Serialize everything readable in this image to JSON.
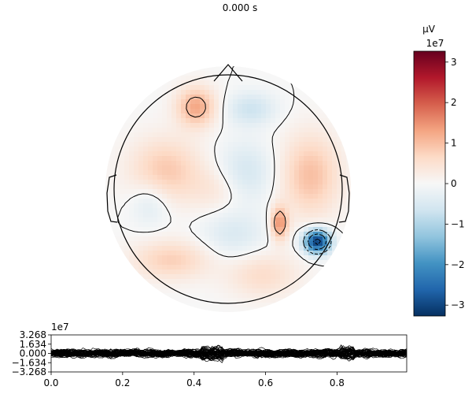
{
  "figure": {
    "title": "0.000 s"
  },
  "chart_data": [
    {
      "type": "heatmap",
      "subtype": "topomap",
      "title": "0.000 s",
      "colormap": "RdBu_r",
      "contour_levels": [
        -30000000,
        -20000000,
        -10000000,
        0,
        10000000,
        20000000,
        30000000
      ],
      "blobs": [
        {
          "x": -0.28,
          "y": 0.72,
          "sx": 0.12,
          "sy": 0.12,
          "amp": 1.3
        },
        {
          "x": -0.55,
          "y": 0.16,
          "sx": 0.22,
          "sy": 0.2,
          "amp": 0.9
        },
        {
          "x": 0.72,
          "y": 0.12,
          "sx": 0.18,
          "sy": 0.25,
          "amp": 1.0
        },
        {
          "x": 0.45,
          "y": -0.3,
          "sx": 0.05,
          "sy": 0.1,
          "amp": 1.6
        },
        {
          "x": 0.78,
          "y": -0.46,
          "sx": 0.08,
          "sy": 0.07,
          "amp": -3.4
        },
        {
          "x": -0.5,
          "y": -0.62,
          "sx": 0.24,
          "sy": 0.12,
          "amp": 0.8
        },
        {
          "x": 0.3,
          "y": -0.75,
          "sx": 0.22,
          "sy": 0.14,
          "amp": 0.6
        },
        {
          "x": 0.15,
          "y": 0.15,
          "sx": 0.18,
          "sy": 0.18,
          "amp": -0.6
        },
        {
          "x": -0.1,
          "y": 0.0,
          "sx": 0.16,
          "sy": 0.14,
          "amp": 0.4
        },
        {
          "x": 0.2,
          "y": 0.7,
          "sx": 0.15,
          "sy": 0.1,
          "amp": -0.7
        },
        {
          "x": -0.68,
          "y": -0.12,
          "sx": 0.12,
          "sy": 0.14,
          "amp": -0.5
        },
        {
          "x": 0.05,
          "y": -0.4,
          "sx": 0.2,
          "sy": 0.15,
          "amp": -0.5
        }
      ]
    },
    {
      "type": "colorbar",
      "unit": "µV",
      "exponent_label": "1e7",
      "ylim": [
        -32680000,
        32680000
      ],
      "ticks": [
        -30000000,
        -20000000,
        -10000000,
        0,
        10000000,
        20000000,
        30000000
      ],
      "tick_labels": [
        "−3",
        "−2",
        "−1",
        "0",
        "1",
        "2",
        "3"
      ],
      "colors": {
        "neg": "#053061",
        "mid": "#f7f7f7",
        "pos": "#67001f"
      }
    },
    {
      "type": "line",
      "exponent_label": "1e7",
      "xlim": [
        0.0,
        0.995
      ],
      "ylim": [
        -32680000,
        32680000
      ],
      "x_ticks": [
        0.0,
        0.2,
        0.4,
        0.6,
        0.8
      ],
      "x_tick_labels": [
        "0.0",
        "0.2",
        "0.4",
        "0.6",
        "0.8"
      ],
      "y_ticks": [
        32680000,
        16340000,
        0,
        -16340000,
        -32680000
      ],
      "y_tick_labels": [
        "3.268",
        "1.634",
        "0.000",
        "−1.634",
        "−3.268"
      ],
      "series_count": 60,
      "series_color": "#000000"
    }
  ]
}
